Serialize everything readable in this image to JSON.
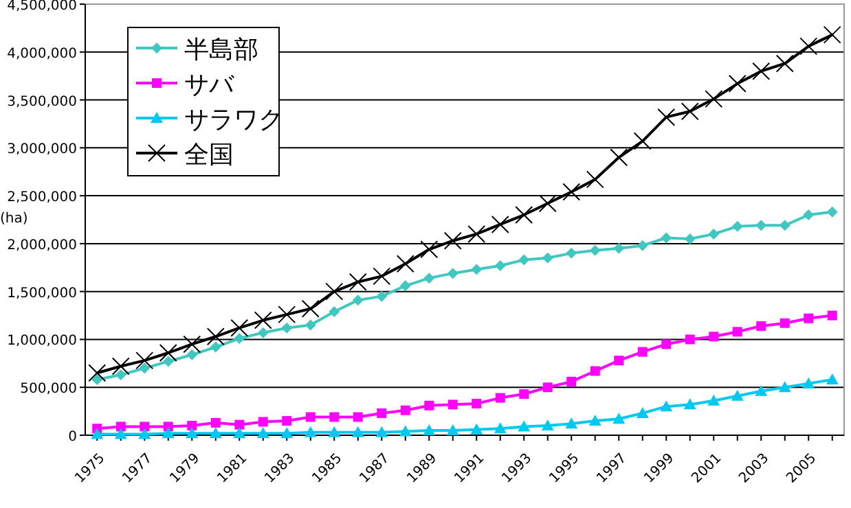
{
  "chart_data": {
    "type": "line",
    "ylabel": "(ha)",
    "categories": [
      "1975",
      null,
      "1977",
      null,
      "1979",
      null,
      "1981",
      null,
      "1983",
      null,
      "1985",
      null,
      "1987",
      null,
      "1989",
      null,
      "1991",
      null,
      "1993",
      null,
      "1995",
      null,
      "1997",
      null,
      "1999",
      null,
      "2001",
      null,
      "2003",
      null,
      "2005",
      null
    ],
    "series": [
      {
        "name": "半島部",
        "color": "#40c8c0",
        "marker": "diamond",
        "values": [
          580000,
          630000,
          700000,
          770000,
          840000,
          920000,
          1010000,
          1070000,
          1120000,
          1150000,
          1290000,
          1410000,
          1450000,
          1560000,
          1640000,
          1690000,
          1730000,
          1770000,
          1830000,
          1850000,
          1900000,
          1930000,
          1950000,
          1980000,
          2060000,
          2050000,
          2100000,
          2180000,
          2190000,
          2190000,
          2300000,
          2330000
        ]
      },
      {
        "name": "サバ",
        "color": "#ff00ff",
        "marker": "square",
        "values": [
          70000,
          90000,
          90000,
          90000,
          100000,
          130000,
          110000,
          140000,
          150000,
          190000,
          190000,
          190000,
          230000,
          260000,
          310000,
          320000,
          330000,
          390000,
          430000,
          500000,
          560000,
          670000,
          780000,
          870000,
          950000,
          1000000,
          1030000,
          1080000,
          1140000,
          1170000,
          1220000,
          1250000
        ]
      },
      {
        "name": "サラワク",
        "color": "#00c8f0",
        "marker": "triangle",
        "values": [
          10000,
          10000,
          10000,
          20000,
          20000,
          20000,
          20000,
          20000,
          20000,
          30000,
          30000,
          30000,
          30000,
          40000,
          50000,
          50000,
          60000,
          70000,
          90000,
          100000,
          120000,
          150000,
          170000,
          230000,
          300000,
          320000,
          360000,
          410000,
          460000,
          500000,
          540000,
          580000
        ]
      },
      {
        "name": "全国",
        "color": "#000000",
        "marker": "cross",
        "values": [
          650000,
          720000,
          780000,
          860000,
          950000,
          1030000,
          1120000,
          1200000,
          1260000,
          1320000,
          1500000,
          1600000,
          1660000,
          1790000,
          1940000,
          2030000,
          2100000,
          2200000,
          2300000,
          2420000,
          2540000,
          2670000,
          2900000,
          3070000,
          3320000,
          3380000,
          3510000,
          3670000,
          3800000,
          3880000,
          4060000,
          4180000
        ]
      }
    ],
    "ylim": [
      0,
      4500000
    ],
    "yticks": [
      {
        "value": 0,
        "label": "0"
      },
      {
        "value": 500000,
        "label": "500,000"
      },
      {
        "value": 1000000,
        "label": "1,000,000"
      },
      {
        "value": 1500000,
        "label": "1,500,000"
      },
      {
        "value": 2000000,
        "label": "2,000,000"
      },
      {
        "value": 2500000,
        "label": "2,500,000"
      },
      {
        "value": 3000000,
        "label": "3,000,000"
      },
      {
        "value": 3500000,
        "label": "3,500,000"
      },
      {
        "value": 4000000,
        "label": "4,000,000"
      },
      {
        "value": 4500000,
        "label": "4,500,000"
      }
    ],
    "grid": "y",
    "legend": "top left",
    "line_style": "solid"
  }
}
